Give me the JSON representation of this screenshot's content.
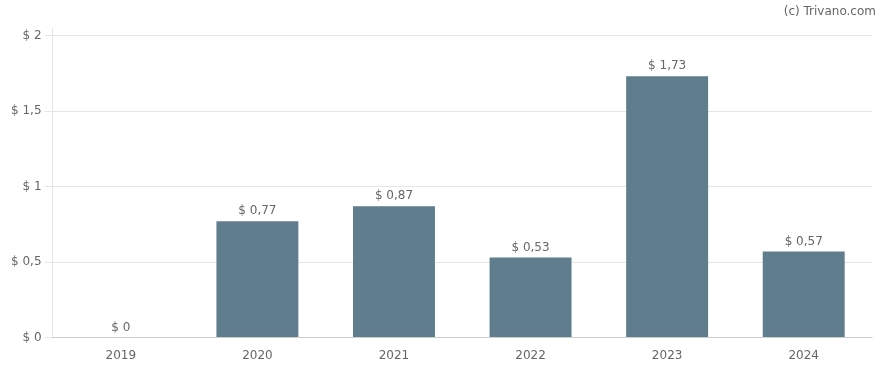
{
  "chart_data": {
    "type": "bar",
    "categories": [
      "2019",
      "2020",
      "2021",
      "2022",
      "2023",
      "2024"
    ],
    "values": [
      0.0,
      0.77,
      0.87,
      0.53,
      1.73,
      0.57
    ],
    "value_labels": [
      "$ 0",
      "$ 0,77",
      "$ 0,87",
      "$ 0,53",
      "$ 1,73",
      "$ 0,57"
    ],
    "data_labels": true,
    "color": "#5f7d8c",
    "ylim": [
      0,
      2.05
    ],
    "yticks": [
      {
        "value": 0,
        "label": "$ 0"
      },
      {
        "value": 0.5,
        "label": "$ 0,5"
      },
      {
        "value": 1.0,
        "label": "$ 1"
      },
      {
        "value": 1.5,
        "label": "$ 1,5"
      },
      {
        "value": 2.0,
        "label": "$ 2"
      }
    ],
    "grid": true,
    "annotations": [
      "(c) Trivano.com"
    ]
  }
}
